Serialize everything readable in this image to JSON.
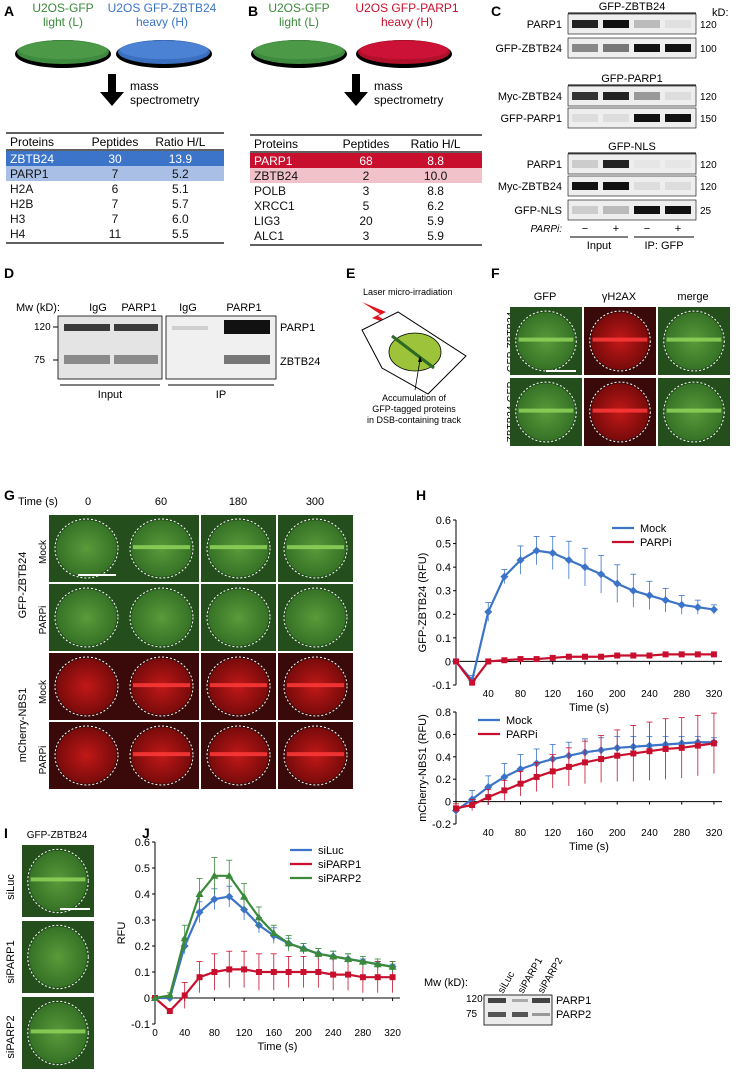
{
  "panels": {
    "A": "A",
    "B": "B",
    "C": "C",
    "D": "D",
    "E": "E",
    "F": "F",
    "G": "G",
    "H": "H",
    "I": "I",
    "J": "J"
  },
  "panelA": {
    "dish_left": [
      "U2OS-GFP",
      "light (L)"
    ],
    "dish_right": [
      "U2OS GFP-ZBTB24",
      "heavy (H)"
    ],
    "arrow_text": [
      "mass",
      "spectrometry"
    ],
    "headers": [
      "Proteins",
      "Peptides",
      "Ratio H/L"
    ],
    "rows": [
      [
        "ZBTB24",
        "30",
        "13.9"
      ],
      [
        "PARP1",
        "7",
        "5.2"
      ],
      [
        "H2A",
        "6",
        "5.1"
      ],
      [
        "H2B",
        "7",
        "5.7"
      ],
      [
        "H3",
        "7",
        "6.0"
      ],
      [
        "H4",
        "11",
        "5.5"
      ]
    ]
  },
  "panelB": {
    "dish_left": [
      "U2OS-GFP",
      "light (L)"
    ],
    "dish_right": [
      "U2OS GFP-PARP1",
      "heavy (H)"
    ],
    "arrow_text": [
      "mass",
      "spectrometry"
    ],
    "headers": [
      "Proteins",
      "Peptides",
      "Ratio H/L"
    ],
    "rows": [
      [
        "PARP1",
        "68",
        "8.8"
      ],
      [
        "ZBTB24",
        "2",
        "10.0"
      ],
      [
        "POLB",
        "3",
        "8.8"
      ],
      [
        "XRCC1",
        "5",
        "6.2"
      ],
      [
        "LIG3",
        "20",
        "5.9"
      ],
      [
        "ALC1",
        "3",
        "5.9"
      ]
    ]
  },
  "panelC": {
    "kd": "kD:",
    "groups": [
      {
        "title": "GFP-ZBTB24",
        "rows": [
          {
            "label": "PARP1",
            "mw": "120"
          },
          {
            "label": "GFP-ZBTB24",
            "mw": "100"
          }
        ]
      },
      {
        "title": "GFP-PARP1",
        "rows": [
          {
            "label": "Myc-ZBTB24",
            "mw": "120"
          },
          {
            "label": "GFP-PARP1",
            "mw": "150"
          }
        ]
      },
      {
        "title": "GFP-NLS",
        "rows": [
          {
            "label": "PARP1",
            "mw": "120"
          },
          {
            "label": "Myc-ZBTB24",
            "mw": "120"
          },
          {
            "label": "GFP-NLS",
            "mw": "25"
          }
        ]
      }
    ],
    "parpi": "PARPi:",
    "signs": [
      "−",
      "+",
      "−",
      "+"
    ],
    "input": "Input",
    "ip": "IP: GFP"
  },
  "panelD": {
    "mw": "Mw (kD):",
    "cols": [
      "IgG",
      "PARP1",
      "IgG",
      "PARP1"
    ],
    "mw_marks": [
      "120",
      "75"
    ],
    "rows": [
      "PARP1",
      "ZBTB24"
    ],
    "input": "Input",
    "ip": "IP"
  },
  "panelE": {
    "laser": "Laser micro-irradiation",
    "caption": [
      "Accumulation of",
      "GFP-tagged proteins",
      "in DSB-containing track"
    ]
  },
  "panelF": {
    "cols": [
      "GFP",
      "γH2AX",
      "merge"
    ],
    "rows": [
      "GFP-ZBTB24",
      "ZBTB24-GFP"
    ]
  },
  "panelG": {
    "time_label": "Time (s)",
    "times": [
      "0",
      "60",
      "180",
      "300"
    ],
    "row_labels": [
      "Mock",
      "PARPi",
      "Mock",
      "PARPi"
    ],
    "group_labels": [
      "GFP-ZBTB24",
      "mCherry-NBS1"
    ]
  },
  "panelI": {
    "title": "GFP-ZBTB24",
    "rows": [
      "siLuc",
      "siPARP1",
      "siPARP2"
    ]
  },
  "panelJblot": {
    "mw": "Mw (kD):",
    "cols": [
      "siLuc",
      "siPARP1",
      "siPARP2"
    ],
    "marks": [
      "120",
      "75"
    ],
    "rows": [
      "PARP1",
      "PARP2"
    ]
  },
  "chart_data": [
    {
      "type": "line",
      "ylabel": "GFP-ZBTB24 (RFU)",
      "xlabel": "Time (s)",
      "x": [
        0,
        20,
        40,
        60,
        80,
        100,
        120,
        140,
        160,
        180,
        200,
        220,
        240,
        260,
        280,
        300,
        320
      ],
      "xticks": [
        40,
        80,
        120,
        160,
        200,
        240,
        280,
        320
      ],
      "yticks": [
        -0.1,
        0,
        0.1,
        0.2,
        0.3,
        0.4,
        0.5,
        0.6
      ],
      "ylim": [
        -0.1,
        0.6
      ],
      "legend": "top-right",
      "series": [
        {
          "name": "Mock",
          "color": "#3b74c8",
          "marker": "diamond",
          "values": [
            0,
            -0.08,
            0.21,
            0.36,
            0.43,
            0.47,
            0.46,
            0.43,
            0.4,
            0.37,
            0.33,
            0.3,
            0.28,
            0.26,
            0.24,
            0.23,
            0.22
          ],
          "err": [
            0,
            0.02,
            0.04,
            0.03,
            0.06,
            0.06,
            0.07,
            0.08,
            0.08,
            0.08,
            0.08,
            0.07,
            0.06,
            0.05,
            0.04,
            0.03,
            0.02
          ]
        },
        {
          "name": "PARPi",
          "color": "#c8102e",
          "marker": "square",
          "values": [
            0,
            -0.09,
            0,
            0.005,
            0.01,
            0.01,
            0.015,
            0.02,
            0.02,
            0.02,
            0.025,
            0.025,
            0.025,
            0.03,
            0.03,
            0.03,
            0.03
          ],
          "err": [
            0,
            0,
            0,
            0,
            0,
            0,
            0,
            0,
            0,
            0,
            0,
            0,
            0,
            0,
            0,
            0,
            0
          ]
        }
      ]
    },
    {
      "type": "line",
      "ylabel": "mCherry-NBS1 (RFU)",
      "xlabel": "Time (s)",
      "x": [
        0,
        20,
        40,
        60,
        80,
        100,
        120,
        140,
        160,
        180,
        200,
        220,
        240,
        260,
        280,
        300,
        320
      ],
      "xticks": [
        40,
        80,
        120,
        160,
        200,
        240,
        280,
        320
      ],
      "yticks": [
        -0.2,
        0,
        0.2,
        0.4,
        0.6,
        0.8
      ],
      "ylim": [
        -0.2,
        0.8
      ],
      "legend": "top-left",
      "series": [
        {
          "name": "Mock",
          "color": "#3b74c8",
          "marker": "diamond",
          "values": [
            -0.08,
            0.02,
            0.13,
            0.22,
            0.29,
            0.34,
            0.38,
            0.41,
            0.44,
            0.46,
            0.48,
            0.49,
            0.5,
            0.51,
            0.52,
            0.53,
            0.53
          ],
          "err": [
            0.04,
            0.08,
            0.1,
            0.12,
            0.13,
            0.13,
            0.13,
            0.12,
            0.12,
            0.11,
            0.1,
            0.09,
            0.08,
            0.07,
            0.06,
            0.05,
            0.04
          ]
        },
        {
          "name": "PARPi",
          "color": "#c8102e",
          "marker": "square",
          "values": [
            -0.06,
            -0.03,
            0.04,
            0.1,
            0.16,
            0.22,
            0.27,
            0.31,
            0.35,
            0.38,
            0.41,
            0.43,
            0.45,
            0.47,
            0.48,
            0.5,
            0.52
          ],
          "err": [
            0.04,
            0.05,
            0.07,
            0.09,
            0.11,
            0.13,
            0.15,
            0.17,
            0.19,
            0.21,
            0.23,
            0.25,
            0.26,
            0.27,
            0.27,
            0.27,
            0.27
          ]
        }
      ]
    },
    {
      "type": "line",
      "ylabel": "RFU",
      "xlabel": "Time (s)",
      "x": [
        0,
        20,
        40,
        60,
        80,
        100,
        120,
        140,
        160,
        180,
        200,
        220,
        240,
        260,
        280,
        300,
        320
      ],
      "xticks": [
        0,
        40,
        80,
        120,
        160,
        200,
        240,
        280,
        320
      ],
      "yticks": [
        -0.1,
        0,
        0.1,
        0.2,
        0.3,
        0.4,
        0.5,
        0.6
      ],
      "ylim": [
        -0.1,
        0.6
      ],
      "legend": "top-right",
      "series": [
        {
          "name": "siLuc",
          "color": "#3b74c8",
          "marker": "diamond",
          "values": [
            0,
            0,
            0.2,
            0.33,
            0.38,
            0.39,
            0.34,
            0.28,
            0.24,
            0.21,
            0.19,
            0.17,
            0.16,
            0.15,
            0.14,
            0.13,
            0.12
          ],
          "err": [
            0,
            0.01,
            0.03,
            0.04,
            0.04,
            0.04,
            0.04,
            0.03,
            0.03,
            0.02,
            0.02,
            0.02,
            0.02,
            0.02,
            0.01,
            0.01,
            0.01
          ]
        },
        {
          "name": "siPARP1",
          "color": "#c8102e",
          "marker": "square",
          "values": [
            0,
            -0.05,
            0.01,
            0.08,
            0.1,
            0.11,
            0.11,
            0.1,
            0.1,
            0.1,
            0.1,
            0.1,
            0.09,
            0.09,
            0.08,
            0.08,
            0.08
          ],
          "err": [
            0,
            0.01,
            0.05,
            0.06,
            0.07,
            0.07,
            0.07,
            0.07,
            0.07,
            0.06,
            0.06,
            0.06,
            0.06,
            0.06,
            0.06,
            0.06,
            0.06
          ]
        },
        {
          "name": "siPARP2",
          "color": "#3a8a3a",
          "marker": "triangle",
          "values": [
            0,
            0.01,
            0.23,
            0.4,
            0.47,
            0.47,
            0.39,
            0.31,
            0.25,
            0.21,
            0.19,
            0.17,
            0.16,
            0.15,
            0.14,
            0.13,
            0.12
          ],
          "err": [
            0,
            0.01,
            0.05,
            0.06,
            0.07,
            0.06,
            0.05,
            0.04,
            0.03,
            0.03,
            0.02,
            0.02,
            0.02,
            0.02,
            0.02,
            0.02,
            0.02
          ]
        }
      ]
    }
  ]
}
